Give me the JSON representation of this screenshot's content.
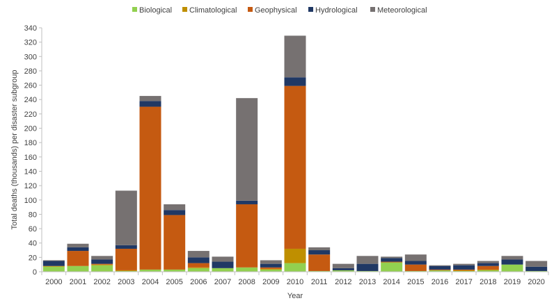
{
  "chart_data": {
    "type": "bar",
    "stacked": true,
    "title": "",
    "xlabel": "Year",
    "ylabel": "Total deaths (thousands) per disaster subgroup",
    "ylim": [
      0,
      340
    ],
    "yticks": [
      0,
      20,
      40,
      60,
      80,
      100,
      120,
      140,
      160,
      180,
      200,
      220,
      240,
      260,
      280,
      300,
      320,
      340
    ],
    "grid": false,
    "legend_position": "top",
    "categories": [
      "2000",
      "2001",
      "2002",
      "2003",
      "2004",
      "2005",
      "2006",
      "2007",
      "2008",
      "2009",
      "2010",
      "2011",
      "2012",
      "2013",
      "2014",
      "2015",
      "2016",
      "2017",
      "2018",
      "2019",
      "2020"
    ],
    "series": [
      {
        "name": "Biological",
        "color": "#92d050",
        "values": [
          7,
          8,
          9,
          1,
          3,
          3,
          5,
          5,
          6,
          3,
          12,
          1,
          2,
          1,
          13,
          1,
          2,
          1,
          2,
          10,
          1
        ]
      },
      {
        "name": "Climatological",
        "color": "#bf8f00",
        "values": [
          1,
          0,
          1,
          1,
          0,
          0,
          1,
          0,
          0,
          1,
          20,
          0,
          0,
          0,
          0,
          0,
          0,
          1,
          1,
          0,
          0
        ]
      },
      {
        "name": "Geophysical",
        "color": "#c55a11",
        "values": [
          0,
          21,
          1,
          30,
          227,
          76,
          6,
          0,
          88,
          2,
          227,
          23,
          0,
          0,
          1,
          9,
          1,
          1,
          5,
          0,
          0
        ]
      },
      {
        "name": "Hydrological",
        "color": "#203864",
        "values": [
          7,
          5,
          6,
          5,
          8,
          7,
          8,
          9,
          5,
          5,
          12,
          6,
          3,
          10,
          5,
          5,
          5,
          6,
          4,
          7,
          6
        ]
      },
      {
        "name": "Meteorological",
        "color": "#767171",
        "values": [
          1,
          5,
          5,
          76,
          7,
          8,
          9,
          7,
          143,
          5,
          58,
          4,
          6,
          11,
          2,
          9,
          1,
          2,
          3,
          5,
          8
        ]
      }
    ]
  }
}
